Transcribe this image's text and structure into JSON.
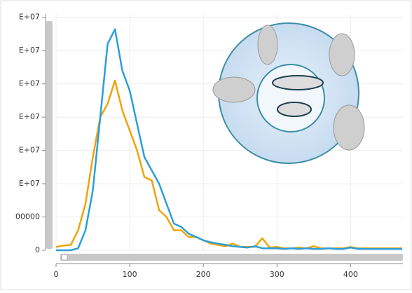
{
  "chart_data": {
    "type": "line",
    "x": [
      0,
      10,
      20,
      30,
      40,
      50,
      60,
      70,
      80,
      90,
      100,
      110,
      120,
      130,
      140,
      150,
      160,
      170,
      180,
      190,
      200,
      210,
      220,
      230,
      240,
      250,
      260,
      270,
      280,
      290,
      300,
      310,
      320,
      330,
      340,
      350,
      360,
      370,
      380,
      390,
      400,
      410,
      420,
      430,
      440,
      450,
      460,
      470
    ],
    "series": [
      {
        "color": "#2b9fd9",
        "values": [
          0,
          0,
          0,
          300000,
          3000000,
          9000000,
          20000000,
          31000000,
          33200000,
          27000000,
          24000000,
          19000000,
          14000000,
          12000000,
          10000000,
          7000000,
          4000000,
          3500000,
          2500000,
          2000000,
          1500000,
          1200000,
          1000000,
          800000,
          600000,
          500000,
          400000,
          600000,
          300000,
          300000,
          300000,
          200000,
          300000,
          200000,
          300000,
          200000,
          200000,
          300000,
          200000,
          200000,
          400000,
          200000,
          200000,
          200000,
          200000,
          200000,
          200000,
          200000
        ]
      },
      {
        "color": "#f0a30a",
        "values": [
          500000,
          700000,
          800000,
          3000000,
          7000000,
          14000000,
          20000000,
          22000000,
          25500000,
          21000000,
          18000000,
          15000000,
          11000000,
          10500000,
          6000000,
          5000000,
          3000000,
          3000000,
          2000000,
          2000000,
          1500000,
          1000000,
          800000,
          600000,
          1000000,
          500000,
          500000,
          500000,
          1800000,
          400000,
          500000,
          300000,
          300000,
          400000,
          300000,
          600000,
          300000,
          300000,
          300000,
          300000,
          500000,
          300000,
          300000,
          300000,
          300000,
          300000,
          300000,
          300000
        ]
      }
    ],
    "xlim": [
      0,
      471
    ],
    "xticks": [
      0,
      100,
      200,
      300,
      400
    ],
    "ylim": [
      0,
      35500000
    ],
    "yticks": [
      0,
      {
        "value": 5000000,
        "label": "00000"
      },
      {
        "value": 10000000,
        "label": "E+07"
      },
      {
        "value": 15000000,
        "label": "E+07"
      },
      {
        "value": 20000000,
        "label": "E+07"
      },
      {
        "value": 25000000,
        "label": "E+07"
      },
      {
        "value": 30000000,
        "label": "E+07"
      },
      {
        "value": 35000000,
        "label": "E+07"
      }
    ],
    "grid": true
  }
}
